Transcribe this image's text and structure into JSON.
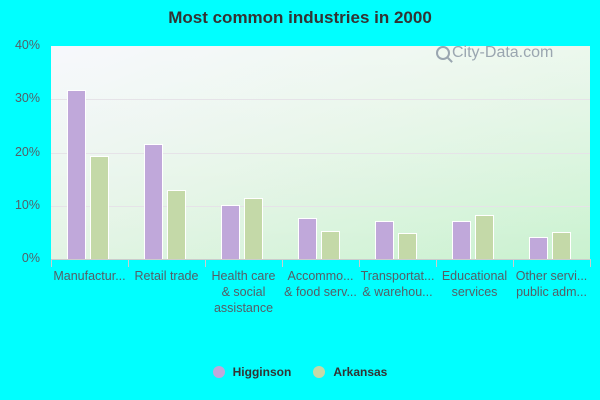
{
  "header": {
    "title": "Most common industries in 2000"
  },
  "watermark": {
    "text": "City-Data.com"
  },
  "legend": [
    {
      "label": "Higginson",
      "color": "#c0a8da"
    },
    {
      "label": "Arkansas",
      "color": "#c4d9a8"
    }
  ],
  "y_ticks": [
    "40%",
    "30%",
    "20%",
    "10%",
    "0%"
  ],
  "x_labels": [
    "Manufactur...",
    "Retail trade",
    "Health care\n& social\nassistance",
    "Accommo...\n& food serv...",
    "Transportat...\n& warehou...",
    "Educational\nservices",
    "Other servi...\npublic adm..."
  ],
  "chart_data": {
    "type": "bar",
    "title": "Most common industries in 2000",
    "xlabel": "",
    "ylabel": "",
    "ylim": [
      0,
      40
    ],
    "y_ticks": [
      0,
      10,
      20,
      30,
      40
    ],
    "y_tick_format": "percent",
    "grid": true,
    "legend_position": "bottom",
    "categories": [
      "Manufacturing",
      "Retail trade",
      "Health care & social assistance",
      "Accommodation & food services",
      "Transportation & warehousing",
      "Educational services",
      "Other services, public administration"
    ],
    "series": [
      {
        "name": "Higginson",
        "color": "#c0a8da",
        "values": [
          31.7,
          21.6,
          10.1,
          7.7,
          7.1,
          7.1,
          4.1
        ]
      },
      {
        "name": "Arkansas",
        "color": "#c4d9a8",
        "values": [
          19.3,
          13.0,
          11.5,
          5.3,
          4.9,
          8.3,
          5.1
        ]
      }
    ]
  }
}
